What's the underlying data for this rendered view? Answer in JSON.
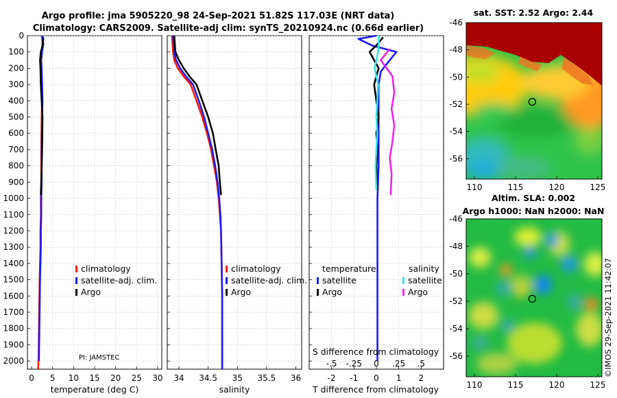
{
  "title_line1": "Argo profile: jma 5905220_98 24-Sep-2021 51.82S 117.03E (NRT data)",
  "title_line2": "Climatology: CARS2009. Satellite-adj clim: synTS_20210924.nc (0.66d earlier)",
  "pi_label": "PI: JAMSTEC",
  "copyright": "©IMOS 29-Sep-2021 11:42:07",
  "colors": {
    "climatology": "#ff1a00",
    "satellite": "#1a1aff",
    "argo": "#000000",
    "sal_sat": "#33e6e6",
    "sal_argo": "#ee22ee"
  },
  "chart_data": [
    {
      "type": "line",
      "title": "",
      "xlabel": "temperature (deg C)",
      "ylabel": "",
      "xlim": [
        -1,
        31
      ],
      "ylim": [
        2050,
        0
      ],
      "xticks": [
        0,
        5,
        10,
        15,
        20,
        25,
        30
      ],
      "yticks": [
        0,
        100,
        200,
        300,
        400,
        500,
        600,
        700,
        800,
        900,
        1000,
        1100,
        1200,
        1300,
        1400,
        1500,
        1600,
        1700,
        1800,
        1900,
        2000
      ],
      "legend": [
        "climatology",
        "satellite-adj. clim.",
        "Argo"
      ],
      "legend_position": "lower-right",
      "series": [
        {
          "name": "climatology",
          "x": [
            2.5,
            2.6,
            2.4,
            2.2,
            2.3,
            2.4,
            2.5,
            2.4,
            2.3,
            2.3,
            2.2,
            2.2,
            2.1,
            2.1,
            2.0,
            1.9,
            1.8,
            1.7,
            1.65,
            1.55
          ],
          "y": [
            0,
            50,
            100,
            150,
            200,
            300,
            400,
            500,
            700,
            900,
            1000,
            1100,
            1200,
            1300,
            1400,
            1500,
            1700,
            1900,
            1990,
            2050
          ]
        },
        {
          "name": "satellite-adj. clim.",
          "x": [
            2.5,
            2.8,
            2.5,
            2.3,
            2.4,
            2.5,
            2.6,
            2.5,
            2.4,
            2.4,
            2.3,
            2.3,
            2.2,
            2.2,
            2.1,
            2.0,
            1.9,
            1.8,
            1.75
          ],
          "y": [
            0,
            50,
            100,
            150,
            200,
            300,
            400,
            500,
            700,
            900,
            1000,
            1100,
            1200,
            1300,
            1400,
            1500,
            1700,
            1900,
            2000
          ]
        },
        {
          "name": "Argo",
          "x": [
            2.8,
            2.6,
            2.2,
            2.0,
            2.1,
            2.2,
            2.4,
            2.6,
            2.5,
            2.3,
            2.2
          ],
          "y": [
            10,
            60,
            100,
            150,
            200,
            300,
            400,
            500,
            700,
            900,
            980
          ]
        }
      ]
    },
    {
      "type": "line",
      "title": "",
      "xlabel": "salinity",
      "ylabel": "",
      "xlim": [
        33.8,
        36.1
      ],
      "ylim": [
        2050,
        0
      ],
      "xticks": [
        34,
        34.5,
        35,
        35.5,
        36
      ],
      "legend": [
        "climatology",
        "satellite-adj. clim.",
        "Argo"
      ],
      "legend_position": "lower-right",
      "series": [
        {
          "name": "climatology",
          "x": [
            33.88,
            33.9,
            33.92,
            33.98,
            34.08,
            34.2,
            34.3,
            34.4,
            34.48,
            34.55,
            34.6,
            34.65,
            34.68,
            34.7,
            34.72,
            34.73,
            34.74,
            34.74,
            34.74
          ],
          "y": [
            0,
            100,
            150,
            200,
            250,
            300,
            400,
            500,
            600,
            700,
            800,
            900,
            1000,
            1100,
            1200,
            1400,
            1600,
            1800,
            2050
          ]
        },
        {
          "name": "satellite-adj. clim.",
          "x": [
            33.9,
            33.92,
            33.95,
            34.02,
            34.12,
            34.24,
            34.34,
            34.43,
            34.5,
            34.57,
            34.62,
            34.66,
            34.69,
            34.71,
            34.72,
            34.73,
            34.74,
            34.74,
            34.74
          ],
          "y": [
            0,
            100,
            150,
            200,
            250,
            300,
            400,
            500,
            600,
            700,
            800,
            900,
            1000,
            1100,
            1200,
            1400,
            1600,
            1800,
            2050
          ]
        },
        {
          "name": "Argo",
          "x": [
            33.92,
            33.94,
            34.0,
            34.08,
            34.18,
            34.3,
            34.4,
            34.5,
            34.58,
            34.63,
            34.68,
            34.7,
            34.72
          ],
          "y": [
            0,
            100,
            150,
            200,
            250,
            300,
            400,
            500,
            600,
            700,
            800,
            900,
            980
          ]
        }
      ]
    },
    {
      "type": "line",
      "title": "",
      "xlabel": "T difference from climatology",
      "xlabel_top": "S difference from climatology",
      "ylabel": "",
      "xlim": [
        -3,
        3
      ],
      "ylim": [
        2050,
        0
      ],
      "xticks": [
        -2,
        -1,
        0,
        1,
        2
      ],
      "s_xlim": [
        -0.75,
        0.75
      ],
      "s_xticks": [
        -0.5,
        -0.25,
        0,
        0.25,
        0.5
      ],
      "legend_temperature": [
        "temperature",
        "satellite",
        "Argo"
      ],
      "legend_salinity": [
        "salinity",
        "satellite",
        "Argo"
      ],
      "series": [
        {
          "name": "temperature satellite",
          "x": [
            0.0,
            -0.8,
            -0.2,
            0.9,
            0.6,
            0.2,
            0.1,
            0.1,
            0.1,
            0.05,
            0.05,
            0.05,
            0.05,
            0.05,
            0.05,
            0.05
          ],
          "y": [
            0,
            20,
            60,
            100,
            150,
            220,
            300,
            500,
            800,
            1000,
            1200,
            1400,
            1600,
            1800,
            1900,
            2000
          ]
        },
        {
          "name": "temperature Argo",
          "x": [
            0.3,
            0.0,
            -0.3,
            -0.1,
            0.1,
            -0.1,
            0.0,
            0.1,
            0.0,
            0.05,
            0.0,
            0.05
          ],
          "y": [
            10,
            60,
            100,
            150,
            200,
            300,
            400,
            500,
            600,
            700,
            800,
            950
          ]
        },
        {
          "name": "salinity satellite",
          "x": [
            0.03,
            0.02,
            -0.02,
            0.02,
            0.01,
            0.0,
            0.01,
            0.0,
            -0.01,
            0.0
          ],
          "y": [
            0,
            100,
            200,
            300,
            400,
            500,
            600,
            700,
            800,
            950
          ]
        },
        {
          "name": "salinity Argo",
          "x": [
            0.15,
            0.05,
            0.18,
            0.2,
            0.17,
            0.2,
            0.18,
            0.15,
            0.17,
            0.16
          ],
          "y": [
            80,
            150,
            250,
            350,
            450,
            550,
            650,
            750,
            850,
            980
          ]
        }
      ]
    },
    {
      "type": "heatmap",
      "title": "sat. SST: 2.52 Argo: 2.44",
      "xlim": [
        109,
        125.5
      ],
      "ylim": [
        -57.5,
        -46
      ],
      "xticks": [
        110,
        115,
        120,
        125
      ],
      "yticks": [
        -46,
        -48,
        -50,
        -52,
        -54,
        -56
      ],
      "marker": {
        "lon": 117.03,
        "lat": -51.82
      }
    },
    {
      "type": "heatmap",
      "title": "Altim. SLA: 0.002",
      "subtitle": "Argo h1000: NaN h2000: NaN",
      "xlim": [
        109,
        125.5
      ],
      "ylim": [
        -57.5,
        -46
      ],
      "xticks": [
        110,
        115,
        120,
        125
      ],
      "yticks": [
        -46,
        -48,
        -50,
        -52,
        -54,
        -56
      ],
      "marker": {
        "lon": 117.03,
        "lat": -51.82
      }
    }
  ]
}
